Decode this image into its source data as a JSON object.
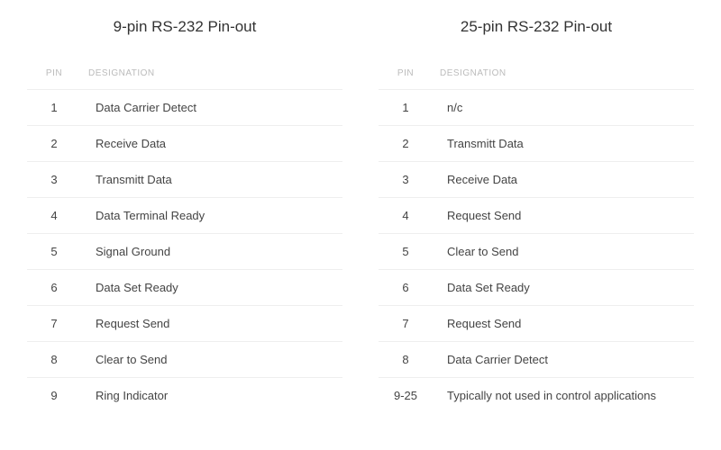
{
  "left_table": {
    "title": "9-pin RS-232 Pin-out",
    "columns": [
      "PIN",
      "DESIGNATION"
    ],
    "rows": [
      {
        "pin": "1",
        "designation": "Data Carrier Detect"
      },
      {
        "pin": "2",
        "designation": "Receive Data"
      },
      {
        "pin": "3",
        "designation": "Transmitt Data"
      },
      {
        "pin": "4",
        "designation": "Data Terminal Ready"
      },
      {
        "pin": "5",
        "designation": "Signal Ground"
      },
      {
        "pin": "6",
        "designation": "Data Set Ready"
      },
      {
        "pin": "7",
        "designation": "Request Send"
      },
      {
        "pin": "8",
        "designation": "Clear to Send"
      },
      {
        "pin": "9",
        "designation": "Ring Indicator"
      }
    ]
  },
  "right_table": {
    "title": "25-pin RS-232 Pin-out",
    "columns": [
      "PIN",
      "DESIGNATION"
    ],
    "rows": [
      {
        "pin": "1",
        "designation": "n/c"
      },
      {
        "pin": "2",
        "designation": "Transmitt Data"
      },
      {
        "pin": "3",
        "designation": "Receive Data"
      },
      {
        "pin": "4",
        "designation": "Request Send"
      },
      {
        "pin": "5",
        "designation": "Clear to Send"
      },
      {
        "pin": "6",
        "designation": "Data Set Ready"
      },
      {
        "pin": "7",
        "designation": "Request Send"
      },
      {
        "pin": "8",
        "designation": "Data Carrier Detect"
      },
      {
        "pin": "9-25",
        "designation": "Typically not used in control applications"
      }
    ]
  },
  "styling": {
    "background_color": "#ffffff",
    "title_color": "#333333",
    "title_fontsize": 17,
    "header_color": "#bbbbbb",
    "header_fontsize": 10,
    "cell_color": "#444444",
    "cell_fontsize": 13,
    "border_color": "#eeeeee",
    "font_family": "-apple-system, Helvetica, Arial, sans-serif"
  }
}
